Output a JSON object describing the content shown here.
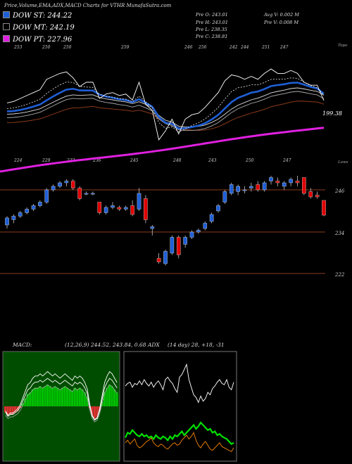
{
  "header": {
    "title": "Price,Volume,EMA,ADX,MACD Charts for VTHR MunafaSutra.com"
  },
  "legend": [
    {
      "label": "DOW ST: 244.22",
      "color": "#1f5fd6"
    },
    {
      "label": "DOW MT: 242.19",
      "color": "#000000"
    },
    {
      "label": "DOW PT: 227.96",
      "color": "#e020e0"
    }
  ],
  "stats": {
    "open": "Pre O: 243.01",
    "high": "Pre H: 243.01",
    "low": "Pre L: 238.35",
    "close": "Pre C: 238.81",
    "avg_vol": "Avg V: 0.002 M",
    "pre_vol": "Pre V: 0.008 M"
  },
  "panels": {
    "ema_topo": "Topo",
    "ema_last": "199.38",
    "candle_lows": "Lows",
    "macd_label": "MACD:",
    "macd_params": "(12,26,9) 244.52, 243.84, 0.68 ADX",
    "adx_params": "(14 day) 28, +18, -31"
  },
  "colors": {
    "ema_blue": "#1f5fd6",
    "ema_pink": "#e020e0",
    "ema_brown": "#8b3a1a",
    "candle_up": "#1f5fd6",
    "candle_down": "#e00000",
    "macd_green": "#00c000",
    "macd_red": "#e03030",
    "adx_green": "#00e000",
    "adx_orange": "#e07800"
  },
  "chart_data": [
    {
      "type": "line",
      "name": "EMA panel",
      "x_labels": [
        "253",
        "250",
        "250",
        "259",
        "246",
        "256",
        "242",
        "244",
        "251",
        "247"
      ],
      "bottom_labels": [
        "224",
        "229",
        "232",
        "236",
        "245",
        "248",
        "243",
        "250",
        "247"
      ],
      "right_labels": [
        "199.38"
      ]
    },
    {
      "type": "candlestick",
      "name": "Price panel",
      "y_ticks": [
        246,
        234,
        222
      ],
      "candles": [
        [
          236.0,
          238.5,
          235.0,
          238.0
        ],
        [
          237.5,
          239.0,
          236.5,
          238.5
        ],
        [
          238.5,
          240.0,
          238.0,
          239.5
        ],
        [
          239.5,
          241.0,
          239.0,
          240.5
        ],
        [
          240.5,
          242.0,
          240.0,
          241.5
        ],
        [
          241.5,
          243.0,
          241.0,
          242.5
        ],
        [
          242.5,
          246.5,
          242.0,
          246.0
        ],
        [
          246.0,
          247.5,
          245.5,
          247.0
        ],
        [
          247.0,
          248.5,
          246.5,
          248.0
        ],
        [
          248.0,
          249.0,
          247.0,
          248.5
        ],
        [
          248.5,
          249.0,
          246.0,
          246.5
        ],
        [
          246.5,
          247.0,
          243.0,
          243.5
        ],
        [
          245.0,
          245.5,
          244.5,
          245.0
        ],
        [
          245.0,
          245.5,
          244.5,
          245.0
        ],
        [
          242.5,
          242.5,
          239.0,
          239.5
        ],
        [
          239.5,
          241.5,
          239.0,
          241.0
        ],
        [
          241.0,
          242.5,
          240.5,
          241.5
        ],
        [
          241.0,
          241.5,
          240.0,
          240.5
        ],
        [
          240.5,
          241.5,
          240.0,
          241.0
        ],
        [
          241.5,
          243.0,
          238.5,
          239.0
        ],
        [
          240.5,
          246.5,
          240.0,
          245.0
        ],
        [
          243.5,
          244.5,
          236.5,
          237.5
        ],
        [
          235.0,
          236.0,
          233.0,
          235.5
        ],
        [
          226.5,
          228.0,
          225.0,
          225.5
        ],
        [
          225.0,
          229.0,
          224.5,
          228.5
        ],
        [
          228.0,
          233.0,
          227.5,
          232.5
        ],
        [
          232.5,
          233.0,
          226.5,
          227.5
        ],
        [
          230.5,
          233.0,
          229.5,
          232.5
        ],
        [
          232.5,
          234.5,
          232.0,
          234.0
        ],
        [
          234.0,
          235.0,
          233.5,
          234.5
        ],
        [
          235.0,
          237.0,
          234.5,
          236.5
        ],
        [
          237.0,
          239.5,
          236.5,
          239.0
        ],
        [
          240.0,
          242.0,
          239.5,
          241.5
        ],
        [
          242.5,
          246.0,
          242.0,
          245.5
        ],
        [
          245.0,
          248.0,
          244.5,
          247.5
        ],
        [
          245.5,
          247.5,
          244.5,
          247.0
        ],
        [
          246.0,
          247.0,
          245.0,
          246.0
        ],
        [
          246.5,
          248.0,
          245.5,
          247.0
        ],
        [
          247.5,
          248.5,
          245.5,
          246.0
        ],
        [
          246.0,
          248.5,
          245.5,
          248.0
        ],
        [
          248.5,
          250.0,
          247.5,
          249.5
        ],
        [
          248.5,
          249.5,
          247.0,
          248.0
        ],
        [
          247.0,
          248.5,
          246.0,
          248.0
        ],
        [
          248.0,
          249.5,
          247.0,
          249.0
        ],
        [
          248.5,
          250.0,
          247.0,
          248.0
        ],
        [
          249.5,
          249.5,
          244.5,
          245.0
        ],
        [
          245.5,
          246.5,
          243.5,
          244.0
        ],
        [
          244.5,
          245.5,
          243.5,
          244.0
        ],
        [
          243.0,
          243.0,
          238.5,
          238.8
        ]
      ]
    },
    {
      "type": "bar",
      "name": "MACD",
      "values": [
        -4,
        -6,
        -5,
        -5,
        -4,
        -3,
        -1,
        2,
        5,
        8,
        9,
        11,
        12,
        12,
        13,
        12,
        13,
        14,
        13,
        12,
        13,
        12,
        11,
        12,
        13,
        12,
        11,
        10,
        12,
        11,
        12,
        11,
        9,
        6,
        -1,
        -6,
        -8,
        -7,
        -3,
        3,
        9,
        12,
        14,
        13,
        11,
        9
      ]
    },
    {
      "type": "line",
      "name": "ADX",
      "series": [
        {
          "values": [
            18,
            22,
            21,
            24,
            22,
            20,
            19,
            21,
            19,
            20,
            18,
            19,
            17,
            20,
            18,
            17,
            19,
            18,
            16,
            19,
            17,
            20,
            19,
            21,
            23,
            20,
            22,
            24,
            26,
            28,
            25,
            27,
            30,
            28,
            26,
            24,
            25,
            22,
            23,
            20,
            21,
            19,
            18,
            17,
            15,
            13,
            14
          ]
        },
        {
          "values": [
            45,
            47,
            48,
            44,
            47,
            46,
            49,
            46,
            50,
            47,
            45,
            48,
            44,
            47,
            49,
            46,
            42,
            50,
            52,
            49,
            47,
            43,
            40,
            52,
            54,
            58,
            62,
            50,
            44,
            38,
            36,
            32,
            37,
            33,
            35,
            40,
            38,
            43,
            45,
            48,
            50,
            47,
            46,
            50,
            44,
            42,
            48
          ]
        },
        {
          "values": [
            14,
            16,
            13,
            15,
            17,
            12,
            10,
            11,
            13,
            15,
            16,
            18,
            14,
            12,
            11,
            13,
            12,
            10,
            9,
            11,
            13,
            14,
            12,
            13,
            16,
            18,
            20,
            17,
            19,
            22,
            16,
            12,
            10,
            13,
            15,
            12,
            9,
            8,
            10,
            12,
            14,
            11,
            10,
            9,
            8,
            7,
            10
          ]
        }
      ]
    }
  ]
}
